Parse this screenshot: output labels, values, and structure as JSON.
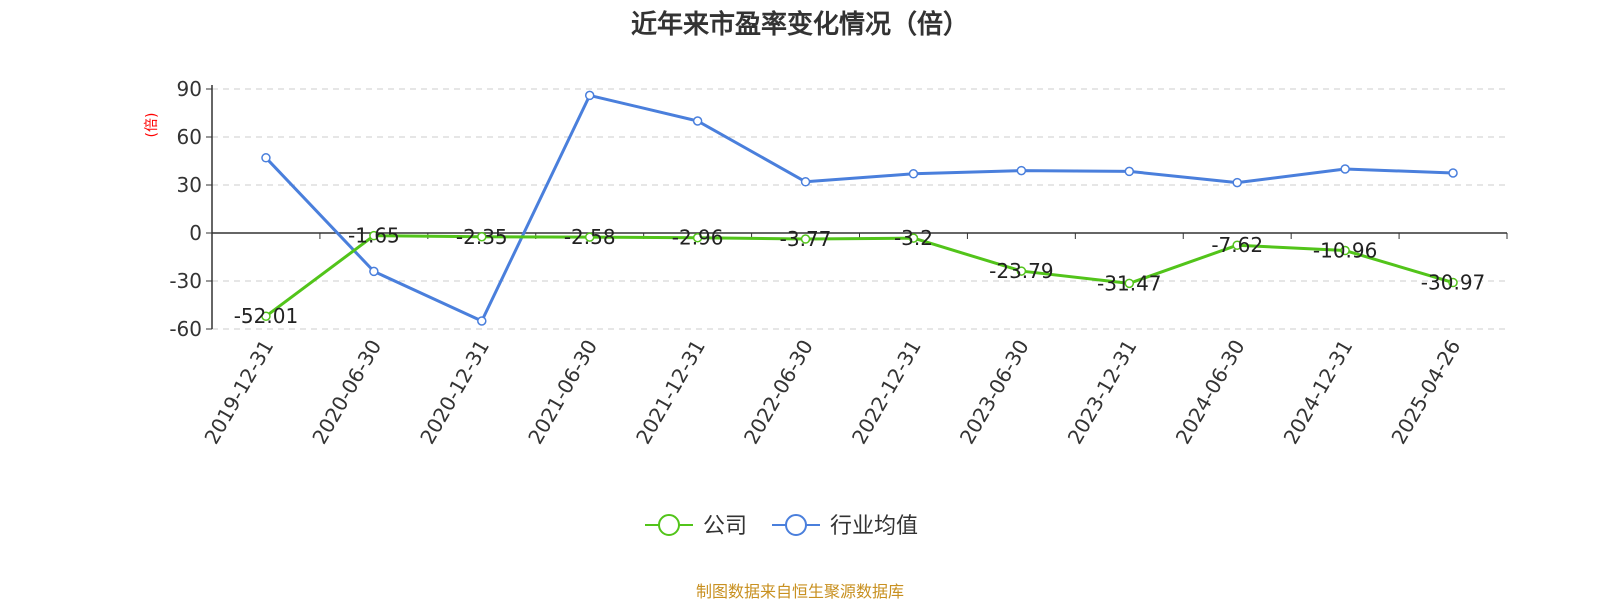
{
  "chart_data": {
    "type": "line",
    "title": "近年来市盈率变化情况（倍）",
    "ylabel": "(倍)",
    "xlabel": "",
    "ylim": [
      -60,
      90
    ],
    "yticks": [
      90,
      60,
      30,
      0,
      -30,
      -60
    ],
    "grid": true,
    "legend_position": "bottom",
    "categories": [
      "2019-12-31",
      "2020-06-30",
      "2020-12-31",
      "2021-06-30",
      "2021-12-31",
      "2022-06-30",
      "2022-12-31",
      "2023-06-30",
      "2023-12-31",
      "2024-06-30",
      "2024-12-31",
      "2025-04-26"
    ],
    "series": [
      {
        "name": "公司",
        "color": "#52c41a",
        "values": [
          -52.01,
          -1.65,
          -2.35,
          -2.58,
          -2.96,
          -3.77,
          -3.2,
          -23.79,
          -31.47,
          -7.62,
          -10.96,
          -30.97
        ],
        "labels": [
          "-52.01",
          "-1.65",
          "-2.35",
          "-2.58",
          "-2.96",
          "-3.77",
          "-3.2",
          "-23.79",
          "-31.47",
          "-7.62",
          "-10.96",
          "-30.97"
        ]
      },
      {
        "name": "行业均值",
        "color": "#4a7fdc",
        "values": [
          47,
          -24,
          -55,
          86,
          70,
          32,
          37,
          39,
          38.5,
          31.5,
          40,
          37.5
        ]
      }
    ],
    "source": "制图数据来自恒生聚源数据库"
  }
}
